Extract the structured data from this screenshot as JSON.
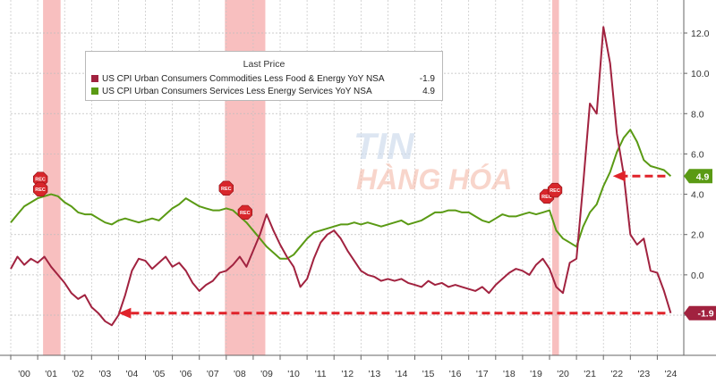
{
  "chart_data": {
    "type": "line",
    "legend": {
      "title": "Last Price",
      "placement": "top-left"
    },
    "series": [
      {
        "name": "US CPI Urban Consumers Commodities Less Food & Energy YoY NSA",
        "last_price": "-1.9",
        "color": "#a1223f",
        "points": [
          [
            2000.0,
            0.3
          ],
          [
            2000.25,
            0.9
          ],
          [
            2000.5,
            0.5
          ],
          [
            2000.75,
            0.8
          ],
          [
            2001.0,
            0.6
          ],
          [
            2001.25,
            0.9
          ],
          [
            2001.5,
            0.4
          ],
          [
            2001.75,
            0.0
          ],
          [
            2002.0,
            -0.4
          ],
          [
            2002.25,
            -0.9
          ],
          [
            2002.5,
            -1.2
          ],
          [
            2002.75,
            -1.0
          ],
          [
            2003.0,
            -1.6
          ],
          [
            2003.25,
            -1.9
          ],
          [
            2003.5,
            -2.3
          ],
          [
            2003.75,
            -2.5
          ],
          [
            2004.0,
            -2.0
          ],
          [
            2004.25,
            -1.0
          ],
          [
            2004.5,
            0.2
          ],
          [
            2004.75,
            0.8
          ],
          [
            2005.0,
            0.7
          ],
          [
            2005.25,
            0.3
          ],
          [
            2005.5,
            0.6
          ],
          [
            2005.75,
            0.9
          ],
          [
            2006.0,
            0.4
          ],
          [
            2006.25,
            0.6
          ],
          [
            2006.5,
            0.2
          ],
          [
            2006.75,
            -0.4
          ],
          [
            2007.0,
            -0.8
          ],
          [
            2007.25,
            -0.5
          ],
          [
            2007.5,
            -0.3
          ],
          [
            2007.75,
            0.1
          ],
          [
            2008.0,
            0.2
          ],
          [
            2008.25,
            0.5
          ],
          [
            2008.5,
            0.9
          ],
          [
            2008.75,
            0.4
          ],
          [
            2009.0,
            1.2
          ],
          [
            2009.25,
            2.0
          ],
          [
            2009.5,
            3.0
          ],
          [
            2009.75,
            2.2
          ],
          [
            2010.0,
            1.5
          ],
          [
            2010.25,
            0.9
          ],
          [
            2010.5,
            0.4
          ],
          [
            2010.75,
            -0.6
          ],
          [
            2011.0,
            -0.2
          ],
          [
            2011.25,
            0.8
          ],
          [
            2011.5,
            1.6
          ],
          [
            2011.75,
            2.0
          ],
          [
            2012.0,
            2.2
          ],
          [
            2012.25,
            1.8
          ],
          [
            2012.5,
            1.2
          ],
          [
            2012.75,
            0.7
          ],
          [
            2013.0,
            0.2
          ],
          [
            2013.25,
            0.0
          ],
          [
            2013.5,
            -0.1
          ],
          [
            2013.75,
            -0.3
          ],
          [
            2014.0,
            -0.2
          ],
          [
            2014.25,
            -0.3
          ],
          [
            2014.5,
            -0.2
          ],
          [
            2014.75,
            -0.4
          ],
          [
            2015.0,
            -0.5
          ],
          [
            2015.25,
            -0.6
          ],
          [
            2015.5,
            -0.3
          ],
          [
            2015.75,
            -0.5
          ],
          [
            2016.0,
            -0.4
          ],
          [
            2016.25,
            -0.6
          ],
          [
            2016.5,
            -0.5
          ],
          [
            2016.75,
            -0.6
          ],
          [
            2017.0,
            -0.7
          ],
          [
            2017.25,
            -0.8
          ],
          [
            2017.5,
            -0.6
          ],
          [
            2017.75,
            -0.9
          ],
          [
            2018.0,
            -0.5
          ],
          [
            2018.25,
            -0.2
          ],
          [
            2018.5,
            0.1
          ],
          [
            2018.75,
            0.3
          ],
          [
            2019.0,
            0.2
          ],
          [
            2019.25,
            0.0
          ],
          [
            2019.5,
            0.5
          ],
          [
            2019.75,
            0.8
          ],
          [
            2020.0,
            0.3
          ],
          [
            2020.25,
            -0.6
          ],
          [
            2020.5,
            -0.9
          ],
          [
            2020.75,
            0.6
          ],
          [
            2021.0,
            0.8
          ],
          [
            2021.25,
            4.5
          ],
          [
            2021.5,
            8.5
          ],
          [
            2021.75,
            8.0
          ],
          [
            2022.0,
            12.3
          ],
          [
            2022.25,
            10.5
          ],
          [
            2022.5,
            7.0
          ],
          [
            2022.75,
            5.0
          ],
          [
            2023.0,
            2.0
          ],
          [
            2023.25,
            1.5
          ],
          [
            2023.5,
            1.8
          ],
          [
            2023.75,
            0.2
          ],
          [
            2024.0,
            0.1
          ],
          [
            2024.25,
            -0.8
          ],
          [
            2024.5,
            -1.9
          ]
        ]
      },
      {
        "name": "US CPI Urban Consumers Services Less Energy Services YoY NSA",
        "last_price": "4.9",
        "color": "#5a9a14",
        "points": [
          [
            2000.0,
            2.6
          ],
          [
            2000.25,
            3.0
          ],
          [
            2000.5,
            3.4
          ],
          [
            2000.75,
            3.6
          ],
          [
            2001.0,
            3.8
          ],
          [
            2001.25,
            3.9
          ],
          [
            2001.5,
            4.0
          ],
          [
            2001.75,
            3.9
          ],
          [
            2002.0,
            3.6
          ],
          [
            2002.25,
            3.4
          ],
          [
            2002.5,
            3.1
          ],
          [
            2002.75,
            3.0
          ],
          [
            2003.0,
            3.0
          ],
          [
            2003.25,
            2.8
          ],
          [
            2003.5,
            2.6
          ],
          [
            2003.75,
            2.5
          ],
          [
            2004.0,
            2.7
          ],
          [
            2004.25,
            2.8
          ],
          [
            2004.5,
            2.7
          ],
          [
            2004.75,
            2.6
          ],
          [
            2005.0,
            2.7
          ],
          [
            2005.25,
            2.8
          ],
          [
            2005.5,
            2.7
          ],
          [
            2005.75,
            3.0
          ],
          [
            2006.0,
            3.3
          ],
          [
            2006.25,
            3.5
          ],
          [
            2006.5,
            3.8
          ],
          [
            2006.75,
            3.6
          ],
          [
            2007.0,
            3.4
          ],
          [
            2007.25,
            3.3
          ],
          [
            2007.5,
            3.2
          ],
          [
            2007.75,
            3.2
          ],
          [
            2008.0,
            3.3
          ],
          [
            2008.25,
            3.2
          ],
          [
            2008.5,
            2.9
          ],
          [
            2008.75,
            2.6
          ],
          [
            2009.0,
            2.2
          ],
          [
            2009.25,
            1.8
          ],
          [
            2009.5,
            1.4
          ],
          [
            2009.75,
            1.1
          ],
          [
            2010.0,
            0.8
          ],
          [
            2010.25,
            0.8
          ],
          [
            2010.5,
            1.0
          ],
          [
            2010.75,
            1.4
          ],
          [
            2011.0,
            1.8
          ],
          [
            2011.25,
            2.1
          ],
          [
            2011.5,
            2.2
          ],
          [
            2011.75,
            2.3
          ],
          [
            2012.0,
            2.4
          ],
          [
            2012.25,
            2.5
          ],
          [
            2012.5,
            2.5
          ],
          [
            2012.75,
            2.6
          ],
          [
            2013.0,
            2.5
          ],
          [
            2013.25,
            2.6
          ],
          [
            2013.5,
            2.5
          ],
          [
            2013.75,
            2.4
          ],
          [
            2014.0,
            2.5
          ],
          [
            2014.25,
            2.6
          ],
          [
            2014.5,
            2.7
          ],
          [
            2014.75,
            2.5
          ],
          [
            2015.0,
            2.6
          ],
          [
            2015.25,
            2.7
          ],
          [
            2015.5,
            2.9
          ],
          [
            2015.75,
            3.1
          ],
          [
            2016.0,
            3.1
          ],
          [
            2016.25,
            3.2
          ],
          [
            2016.5,
            3.2
          ],
          [
            2016.75,
            3.1
          ],
          [
            2017.0,
            3.1
          ],
          [
            2017.25,
            2.9
          ],
          [
            2017.5,
            2.7
          ],
          [
            2017.75,
            2.6
          ],
          [
            2018.0,
            2.8
          ],
          [
            2018.25,
            3.0
          ],
          [
            2018.5,
            2.9
          ],
          [
            2018.75,
            2.9
          ],
          [
            2019.0,
            3.0
          ],
          [
            2019.25,
            3.1
          ],
          [
            2019.5,
            3.0
          ],
          [
            2019.75,
            3.1
          ],
          [
            2020.0,
            3.2
          ],
          [
            2020.25,
            2.2
          ],
          [
            2020.5,
            1.8
          ],
          [
            2020.75,
            1.6
          ],
          [
            2021.0,
            1.4
          ],
          [
            2021.25,
            2.4
          ],
          [
            2021.5,
            3.1
          ],
          [
            2021.75,
            3.5
          ],
          [
            2022.0,
            4.4
          ],
          [
            2022.25,
            5.1
          ],
          [
            2022.5,
            6.1
          ],
          [
            2022.75,
            6.8
          ],
          [
            2023.0,
            7.2
          ],
          [
            2023.25,
            6.6
          ],
          [
            2023.5,
            5.7
          ],
          [
            2023.75,
            5.4
          ],
          [
            2024.0,
            5.3
          ],
          [
            2024.25,
            5.2
          ],
          [
            2024.5,
            4.9
          ]
        ]
      }
    ],
    "x_ticks": [
      "'00",
      "'01",
      "'02",
      "'03",
      "'04",
      "'05",
      "'06",
      "'07",
      "'08",
      "'09",
      "'10",
      "'11",
      "'12",
      "'13",
      "'14",
      "'15",
      "'16",
      "'17",
      "'18",
      "'19",
      "'20",
      "'21",
      "'22",
      "'23",
      "'24"
    ],
    "xlim": [
      2000,
      2025
    ],
    "y_ticks": [
      "-2.0",
      "0.0",
      "2.0",
      "4.0",
      "6.0",
      "8.0",
      "10.0",
      "12.0"
    ],
    "ylim": [
      -4.0,
      13.5
    ],
    "recessions": [
      [
        2001.2,
        2001.85
      ],
      [
        2007.95,
        2009.45
      ],
      [
        2020.1,
        2020.35
      ]
    ],
    "rec_markers": [
      {
        "label": "REC",
        "x": 2001.1,
        "y": 4.75
      },
      {
        "label": "REC",
        "x": 2001.1,
        "y": 4.25
      },
      {
        "label": "REC",
        "x": 2008.0,
        "y": 4.3
      },
      {
        "label": "REC",
        "x": 2008.7,
        "y": 3.1
      },
      {
        "label": "REC",
        "x": 2019.9,
        "y": 3.9
      },
      {
        "label": "REC",
        "x": 2020.2,
        "y": 4.2
      }
    ],
    "arrows": [
      {
        "from": [
          2024.3,
          4.9
        ],
        "to": [
          2022.35,
          4.9
        ],
        "color": "#e0232a"
      },
      {
        "from": [
          2024.3,
          -1.9
        ],
        "to": [
          2004.0,
          -1.9
        ],
        "color": "#e0232a"
      }
    ],
    "last_value_labels": [
      {
        "text": "4.9",
        "value": 4.9,
        "color": "#5a9a14"
      },
      {
        "text": "-1.9",
        "value": -1.9,
        "color": "#a1223f"
      }
    ],
    "grid": true,
    "watermark": {
      "line1": "TIN",
      "line2": "HÀNG HÓA"
    }
  }
}
